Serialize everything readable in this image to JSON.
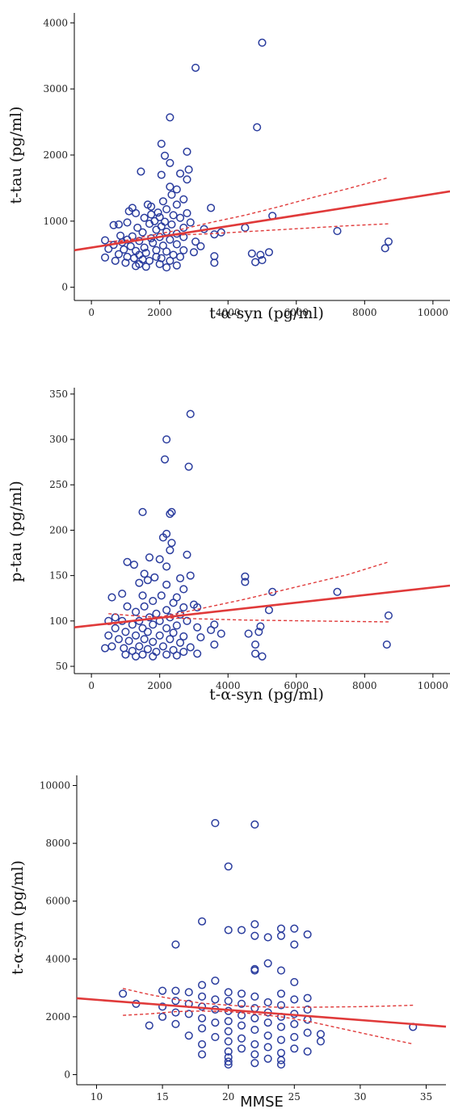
{
  "colors": {
    "points": "#2b3d9e",
    "fit_line": "#e03a3a",
    "axis": "#000000"
  },
  "chart_data": [
    {
      "type": "scatter",
      "xlabel": "t-α-syn (pg/ml)",
      "ylabel": "t-tau (pg/ml)",
      "xlim": [
        -500,
        10500
      ],
      "ylim": [
        -200,
        4150
      ],
      "x_ticks": [
        0,
        2000,
        4000,
        6000,
        8000,
        10000
      ],
      "y_ticks": [
        0,
        1000,
        2000,
        3000,
        4000
      ],
      "fit_line": {
        "x": [
          -500,
          10500
        ],
        "y": [
          560,
          1450
        ]
      },
      "ci_upper": {
        "x": [
          500,
          1500,
          2500,
          3500,
          4500,
          5500,
          6500,
          7500,
          8700
        ],
        "y": [
          650,
          760,
          860,
          980,
          1090,
          1220,
          1360,
          1490,
          1660
        ]
      },
      "ci_lower": {
        "x": [
          500,
          1500,
          2500,
          3500,
          4500,
          5500,
          6500,
          7500,
          8700
        ],
        "y": [
          690,
          730,
          790,
          810,
          840,
          870,
          900,
          930,
          960
        ]
      },
      "points": [
        [
          5000,
          3700
        ],
        [
          3050,
          3320
        ],
        [
          2300,
          2570
        ],
        [
          4850,
          2420
        ],
        [
          2050,
          2170
        ],
        [
          2800,
          2050
        ],
        [
          2150,
          1990
        ],
        [
          2300,
          1880
        ],
        [
          2850,
          1780
        ],
        [
          1450,
          1750
        ],
        [
          2600,
          1720
        ],
        [
          2050,
          1700
        ],
        [
          2800,
          1630
        ],
        [
          2300,
          1520
        ],
        [
          2500,
          1480
        ],
        [
          2350,
          1400
        ],
        [
          2700,
          1330
        ],
        [
          2100,
          1300
        ],
        [
          1650,
          1250
        ],
        [
          2500,
          1250
        ],
        [
          1200,
          1200
        ],
        [
          1750,
          1220
        ],
        [
          3500,
          1200
        ],
        [
          1100,
          1150
        ],
        [
          2200,
          1180
        ],
        [
          1300,
          1120
        ],
        [
          1950,
          1130
        ],
        [
          2800,
          1120
        ],
        [
          1750,
          1100
        ],
        [
          2400,
          1090
        ],
        [
          5300,
          1080
        ],
        [
          1550,
          1050
        ],
        [
          2000,
          1060
        ],
        [
          2600,
          1050
        ],
        [
          1850,
          1000
        ],
        [
          2150,
          990
        ],
        [
          1050,
          980
        ],
        [
          2900,
          980
        ],
        [
          650,
          940
        ],
        [
          800,
          950
        ],
        [
          1700,
          960
        ],
        [
          2350,
          950
        ],
        [
          1350,
          900
        ],
        [
          2050,
          920
        ],
        [
          2700,
          900
        ],
        [
          4500,
          900
        ],
        [
          3300,
          880
        ],
        [
          1900,
          870
        ],
        [
          7200,
          850
        ],
        [
          2200,
          840
        ],
        [
          1500,
          830
        ],
        [
          3800,
          830
        ],
        [
          2500,
          810
        ],
        [
          3600,
          800
        ],
        [
          850,
          780
        ],
        [
          1200,
          770
        ],
        [
          2000,
          760
        ],
        [
          2700,
          760
        ],
        [
          1750,
          740
        ],
        [
          1050,
          720
        ],
        [
          400,
          710
        ],
        [
          2300,
          720
        ],
        [
          1400,
          700
        ],
        [
          3050,
          690
        ],
        [
          8700,
          690
        ],
        [
          900,
          680
        ],
        [
          1800,
          670
        ],
        [
          2500,
          650
        ],
        [
          650,
          640
        ],
        [
          1150,
          620
        ],
        [
          2100,
          630
        ],
        [
          3200,
          620
        ],
        [
          1550,
          600
        ],
        [
          8600,
          590
        ],
        [
          500,
          580
        ],
        [
          950,
          570
        ],
        [
          1900,
          560
        ],
        [
          2700,
          560
        ],
        [
          1300,
          550
        ],
        [
          2200,
          540
        ],
        [
          3000,
          530
        ],
        [
          5200,
          530
        ],
        [
          1600,
          520
        ],
        [
          4700,
          510
        ],
        [
          4950,
          490
        ],
        [
          800,
          500
        ],
        [
          1400,
          490
        ],
        [
          2400,
          490
        ],
        [
          3600,
          470
        ],
        [
          1050,
          460
        ],
        [
          1900,
          460
        ],
        [
          2600,
          460
        ],
        [
          400,
          450
        ],
        [
          1250,
          440
        ],
        [
          2050,
          440
        ],
        [
          1500,
          420
        ],
        [
          5000,
          410
        ],
        [
          700,
          400
        ],
        [
          1700,
          400
        ],
        [
          2300,
          400
        ],
        [
          4800,
          380
        ],
        [
          3600,
          370
        ],
        [
          1000,
          370
        ],
        [
          1400,
          350
        ],
        [
          2000,
          350
        ],
        [
          2500,
          330
        ],
        [
          1300,
          320
        ],
        [
          1600,
          310
        ],
        [
          2200,
          300
        ]
      ]
    },
    {
      "type": "scatter",
      "xlabel": "t-α-syn (pg/ml)",
      "ylabel": "p-tau (pg/ml)",
      "xlim": [
        -500,
        10500
      ],
      "ylim": [
        42,
        357
      ],
      "x_ticks": [
        0,
        2000,
        4000,
        6000,
        8000,
        10000
      ],
      "y_ticks": [
        50,
        100,
        150,
        200,
        250,
        300,
        350
      ],
      "fit_line": {
        "x": [
          -500,
          10500
        ],
        "y": [
          93,
          139
        ]
      },
      "ci_upper": {
        "x": [
          500,
          1500,
          2500,
          3500,
          4500,
          5500,
          6500,
          7500,
          8700
        ],
        "y": [
          96,
          101,
          108,
          116,
          124,
          133,
          142,
          151,
          165
        ]
      },
      "ci_lower": {
        "x": [
          500,
          1500,
          2500,
          3500,
          4500,
          5500,
          6500,
          7500,
          8700
        ],
        "y": [
          108,
          105,
          103,
          102,
          101,
          100.5,
          100,
          99.5,
          99
        ]
      },
      "points": [
        [
          2900,
          328
        ],
        [
          2200,
          300
        ],
        [
          2150,
          278
        ],
        [
          2850,
          270
        ],
        [
          1500,
          220
        ],
        [
          2350,
          220
        ],
        [
          2300,
          218
        ],
        [
          2200,
          196
        ],
        [
          2100,
          192
        ],
        [
          2350,
          186
        ],
        [
          2300,
          178
        ],
        [
          1700,
          170
        ],
        [
          2800,
          173
        ],
        [
          2000,
          168
        ],
        [
          1050,
          165
        ],
        [
          1250,
          162
        ],
        [
          2200,
          160
        ],
        [
          1550,
          152
        ],
        [
          4500,
          149
        ],
        [
          2900,
          150
        ],
        [
          1850,
          148
        ],
        [
          2600,
          147
        ],
        [
          4500,
          143
        ],
        [
          1650,
          145
        ],
        [
          1400,
          142
        ],
        [
          2200,
          140
        ],
        [
          2700,
          135
        ],
        [
          5300,
          132
        ],
        [
          7200,
          132
        ],
        [
          900,
          130
        ],
        [
          1500,
          128
        ],
        [
          2050,
          128
        ],
        [
          2500,
          126
        ],
        [
          600,
          126
        ],
        [
          1800,
          122
        ],
        [
          2400,
          120
        ],
        [
          3000,
          118
        ],
        [
          1050,
          116
        ],
        [
          1550,
          116
        ],
        [
          2700,
          115
        ],
        [
          3100,
          115
        ],
        [
          2200,
          112
        ],
        [
          5200,
          112
        ],
        [
          1300,
          110
        ],
        [
          1900,
          108
        ],
        [
          2600,
          107
        ],
        [
          8700,
          106
        ],
        [
          700,
          104
        ],
        [
          1700,
          104
        ],
        [
          2300,
          104
        ],
        [
          500,
          100
        ],
        [
          900,
          100
        ],
        [
          1400,
          100
        ],
        [
          2000,
          100
        ],
        [
          2800,
          100
        ],
        [
          3600,
          96
        ],
        [
          1200,
          96
        ],
        [
          1800,
          96
        ],
        [
          2500,
          95
        ],
        [
          4950,
          94
        ],
        [
          3100,
          93
        ],
        [
          700,
          92
        ],
        [
          1500,
          92
        ],
        [
          2200,
          92
        ],
        [
          3500,
          90
        ],
        [
          4900,
          88
        ],
        [
          1000,
          88
        ],
        [
          1650,
          88
        ],
        [
          2400,
          87
        ],
        [
          3800,
          86
        ],
        [
          4600,
          86
        ],
        [
          500,
          84
        ],
        [
          1300,
          84
        ],
        [
          2000,
          84
        ],
        [
          2700,
          83
        ],
        [
          3200,
          82
        ],
        [
          800,
          80
        ],
        [
          1550,
          80
        ],
        [
          2300,
          80
        ],
        [
          1100,
          78
        ],
        [
          1800,
          77
        ],
        [
          2600,
          76
        ],
        [
          3600,
          74
        ],
        [
          4800,
          74
        ],
        [
          8650,
          74
        ],
        [
          600,
          72
        ],
        [
          1400,
          72
        ],
        [
          2100,
          72
        ],
        [
          2900,
          71
        ],
        [
          400,
          70
        ],
        [
          950,
          70
        ],
        [
          1650,
          69
        ],
        [
          2400,
          68
        ],
        [
          1200,
          67
        ],
        [
          1900,
          66
        ],
        [
          2700,
          66
        ],
        [
          3100,
          64
        ],
        [
          4800,
          64
        ],
        [
          1000,
          63
        ],
        [
          1500,
          63
        ],
        [
          2200,
          63
        ],
        [
          5000,
          61
        ],
        [
          1300,
          61
        ],
        [
          1800,
          61
        ],
        [
          2500,
          62
        ]
      ]
    },
    {
      "type": "scatter",
      "xlabel": "MMSE",
      "ylabel": "t-α-syn (pg/ml)",
      "xlim": [
        8.5,
        36.5
      ],
      "ylim": [
        -350,
        10350
      ],
      "x_ticks": [
        10,
        15,
        20,
        25,
        30,
        35
      ],
      "y_ticks": [
        0,
        2000,
        4000,
        6000,
        8000,
        10000
      ],
      "fit_line": {
        "x": [
          8.5,
          36.5
        ],
        "y": [
          2640,
          1660
        ]
      },
      "ci_upper": {
        "x": [
          12,
          14,
          16,
          18,
          20,
          22,
          24,
          26,
          28,
          30,
          32,
          34
        ],
        "y": [
          2980,
          2770,
          2600,
          2470,
          2400,
          2350,
          2330,
          2330,
          2340,
          2350,
          2370,
          2400
        ]
      },
      "ci_lower": {
        "x": [
          12,
          14,
          16,
          18,
          20,
          22,
          24,
          26,
          28,
          30,
          32,
          34
        ],
        "y": [
          2050,
          2100,
          2180,
          2200,
          2180,
          2100,
          2000,
          1850,
          1650,
          1450,
          1250,
          1060
        ]
      },
      "points": [
        [
          19,
          8700
        ],
        [
          22,
          8650
        ],
        [
          20,
          7200
        ],
        [
          18,
          5300
        ],
        [
          22,
          5200
        ],
        [
          25,
          5050
        ],
        [
          24,
          5050
        ],
        [
          20,
          5000
        ],
        [
          21,
          5000
        ],
        [
          22,
          4800
        ],
        [
          23,
          4750
        ],
        [
          24,
          4800
        ],
        [
          26,
          4850
        ],
        [
          16,
          4500
        ],
        [
          25,
          4500
        ],
        [
          23,
          3850
        ],
        [
          22,
          3650
        ],
        [
          24,
          3600
        ],
        [
          22,
          3600
        ],
        [
          19,
          3250
        ],
        [
          25,
          3200
        ],
        [
          18,
          3100
        ],
        [
          15,
          2900
        ],
        [
          16,
          2900
        ],
        [
          20,
          2850
        ],
        [
          12,
          2800
        ],
        [
          17,
          2850
        ],
        [
          21,
          2800
        ],
        [
          24,
          2800
        ],
        [
          26,
          2650
        ],
        [
          18,
          2700
        ],
        [
          22,
          2700
        ],
        [
          25,
          2600
        ],
        [
          19,
          2600
        ],
        [
          16,
          2550
        ],
        [
          20,
          2550
        ],
        [
          23,
          2500
        ],
        [
          13,
          2450
        ],
        [
          17,
          2450
        ],
        [
          21,
          2450
        ],
        [
          24,
          2400
        ],
        [
          15,
          2350
        ],
        [
          18,
          2350
        ],
        [
          22,
          2300
        ],
        [
          26,
          2250
        ],
        [
          19,
          2250
        ],
        [
          20,
          2200
        ],
        [
          16,
          2150
        ],
        [
          23,
          2150
        ],
        [
          25,
          2100
        ],
        [
          17,
          2100
        ],
        [
          21,
          2050
        ],
        [
          24,
          2000
        ],
        [
          15,
          2000
        ],
        [
          18,
          1950
        ],
        [
          22,
          1950
        ],
        [
          26,
          1900
        ],
        [
          20,
          1850
        ],
        [
          19,
          1800
        ],
        [
          23,
          1800
        ],
        [
          16,
          1750
        ],
        [
          25,
          1750
        ],
        [
          14,
          1700
        ],
        [
          21,
          1700
        ],
        [
          24,
          1650
        ],
        [
          18,
          1600
        ],
        [
          34,
          1650
        ],
        [
          22,
          1550
        ],
        [
          20,
          1500
        ],
        [
          26,
          1450
        ],
        [
          27,
          1400
        ],
        [
          17,
          1350
        ],
        [
          23,
          1350
        ],
        [
          19,
          1300
        ],
        [
          25,
          1300
        ],
        [
          21,
          1250
        ],
        [
          24,
          1200
        ],
        [
          20,
          1150
        ],
        [
          27,
          1150
        ],
        [
          22,
          1050
        ],
        [
          18,
          1050
        ],
        [
          23,
          950
        ],
        [
          25,
          900
        ],
        [
          21,
          900
        ],
        [
          20,
          800
        ],
        [
          26,
          800
        ],
        [
          24,
          750
        ],
        [
          18,
          700
        ],
        [
          22,
          700
        ],
        [
          20,
          600
        ],
        [
          23,
          550
        ],
        [
          24,
          500
        ],
        [
          20,
          450
        ],
        [
          22,
          400
        ],
        [
          24,
          350
        ],
        [
          20,
          350
        ]
      ]
    }
  ]
}
